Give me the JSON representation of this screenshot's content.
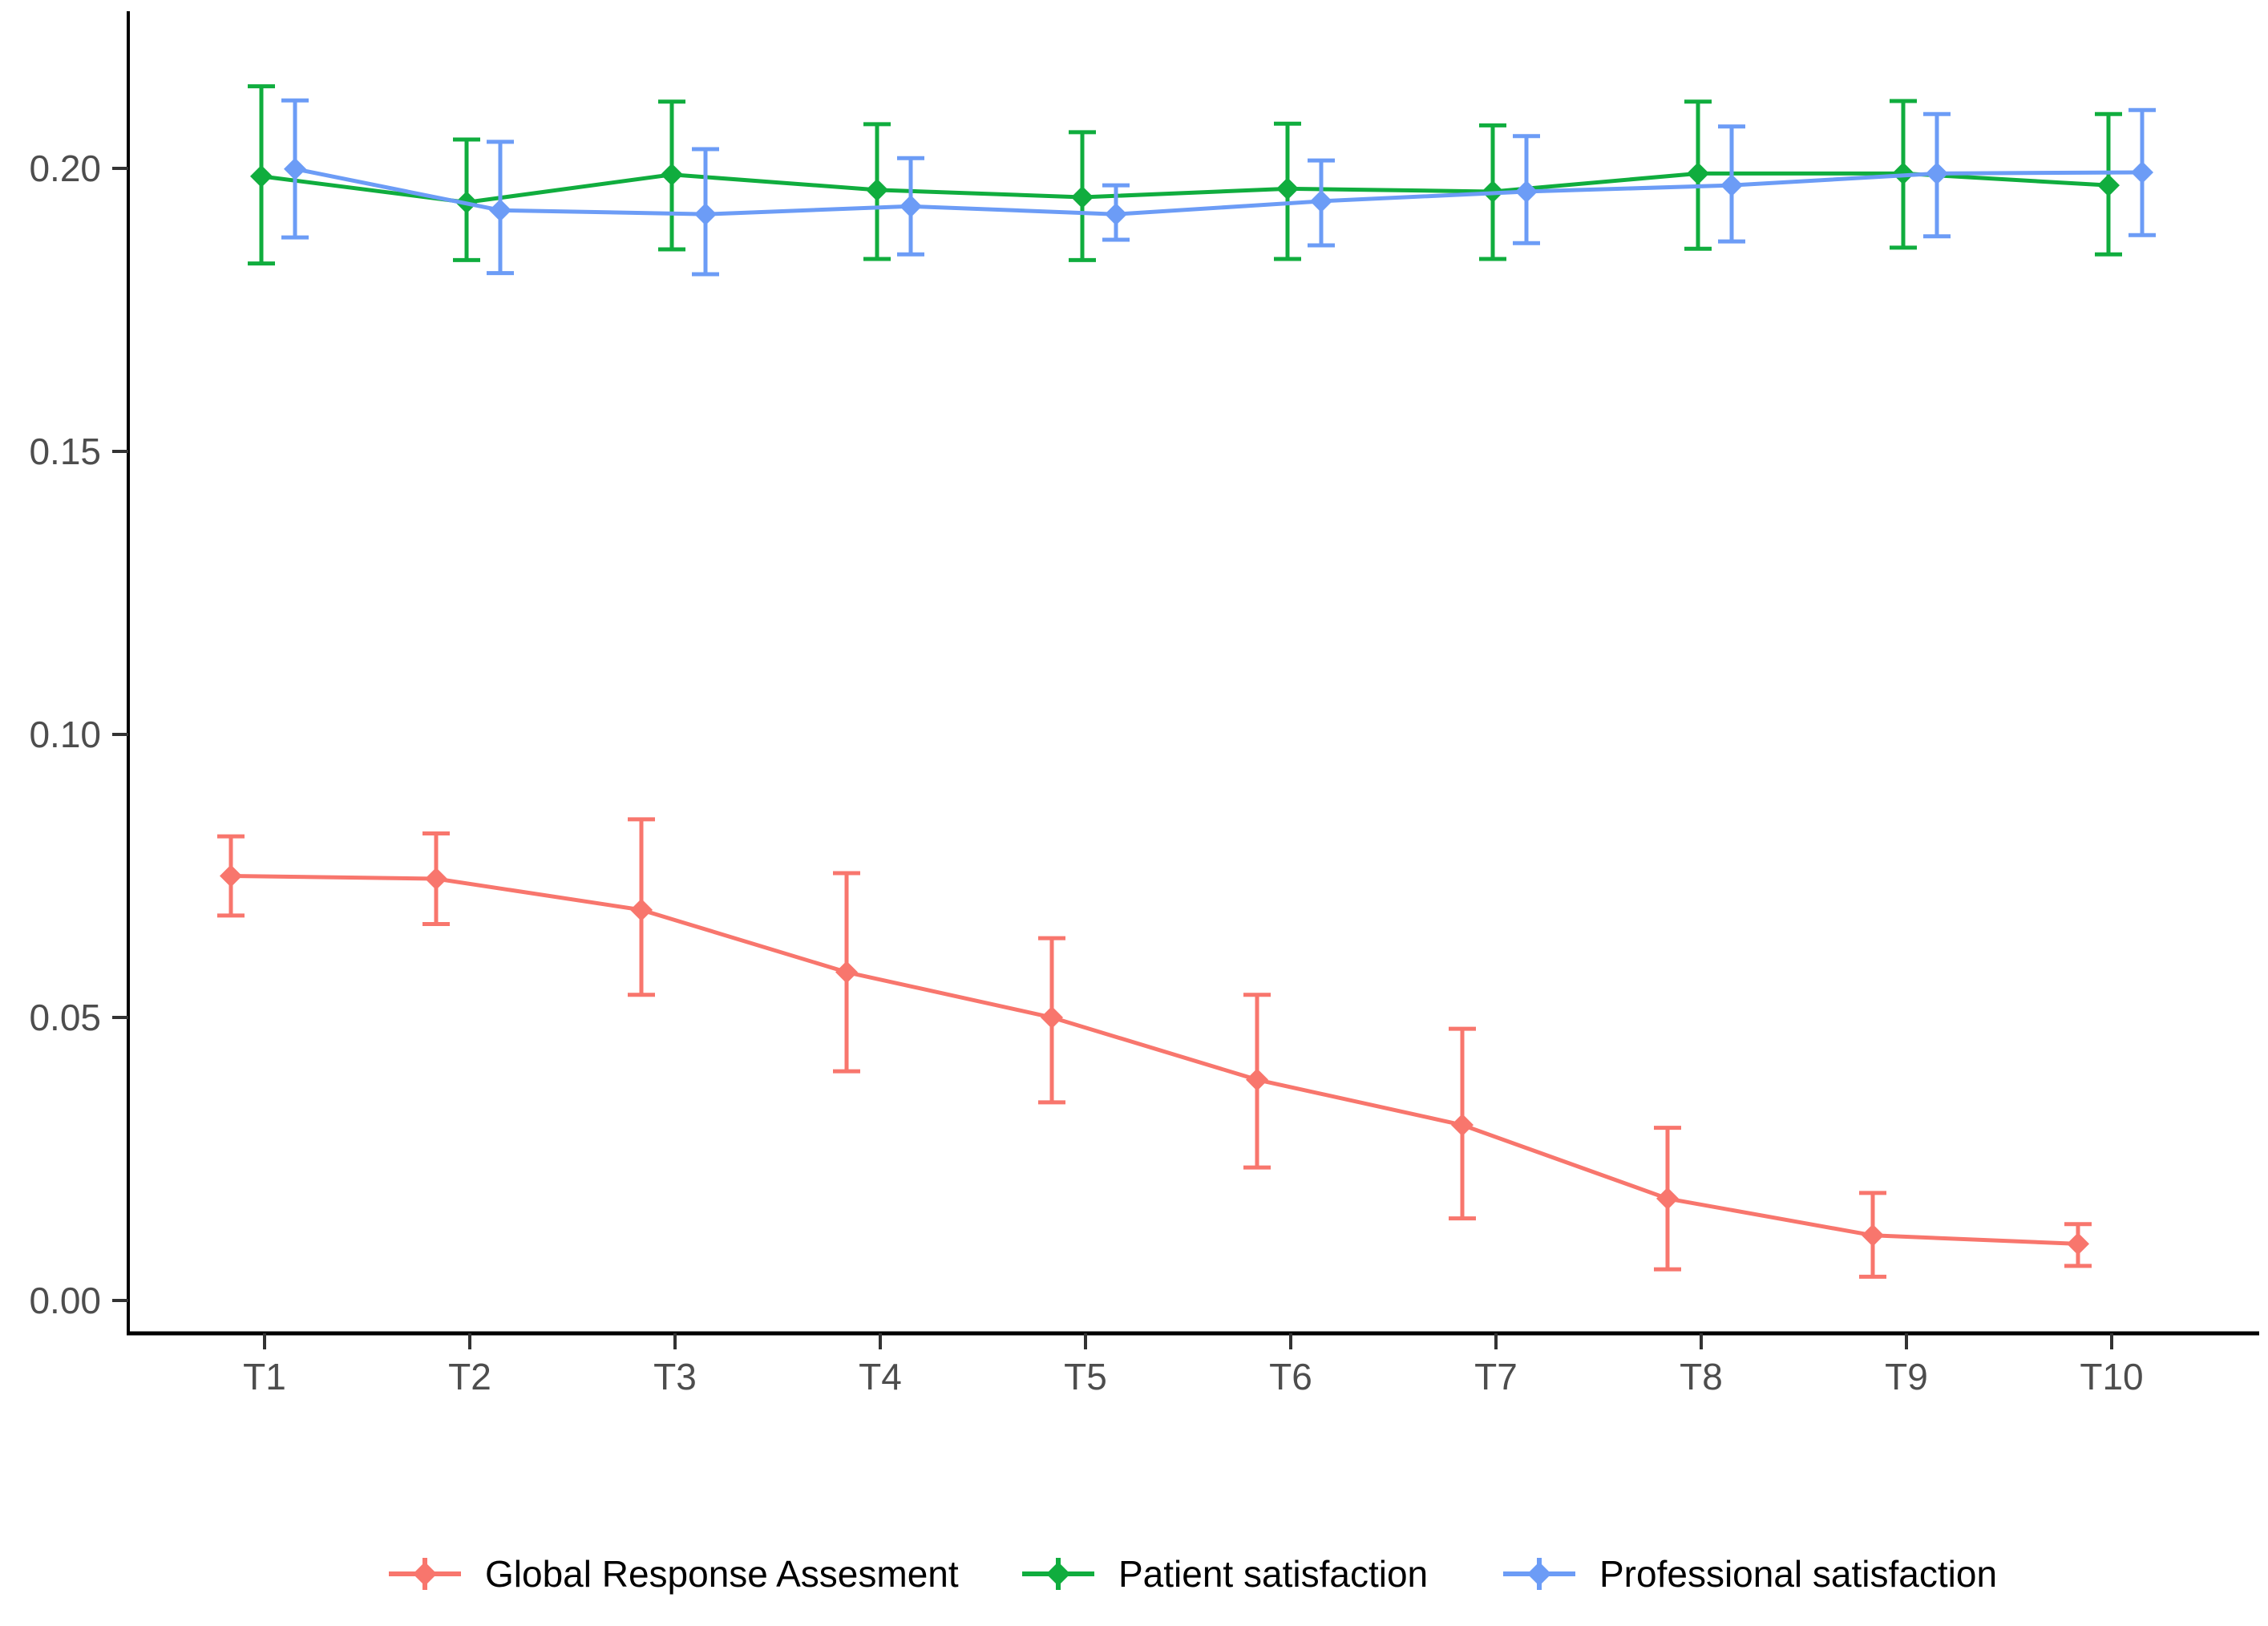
{
  "chart_data": {
    "type": "line",
    "title": "",
    "xlabel": "",
    "ylabel": "",
    "grid": false,
    "legend_position": "bottom",
    "categories": [
      "T1",
      "T2",
      "T3",
      "T4",
      "T5",
      "T6",
      "T7",
      "T8",
      "T9",
      "T10"
    ],
    "y_ticks": [
      "0.00",
      "0.05",
      "0.10",
      "0.15",
      "0.20"
    ],
    "y_tick_values": [
      0.0,
      0.05,
      0.1,
      0.15,
      0.2
    ],
    "ylim": [
      -0.006,
      0.228
    ],
    "series": [
      {
        "name": "Global Response Assesment",
        "color": "#F8766D",
        "marker": "diamond",
        "values": [
          0.075,
          0.0745,
          0.069,
          0.058,
          0.05,
          0.039,
          0.031,
          0.018,
          0.0115,
          0.01
        ],
        "err_low": [
          0.068,
          0.0665,
          0.054,
          0.0405,
          0.035,
          0.0235,
          0.0145,
          0.0055,
          0.0042,
          0.0061
        ],
        "err_high": [
          0.082,
          0.0825,
          0.085,
          0.0755,
          0.064,
          0.054,
          0.048,
          0.0305,
          0.019,
          0.0135
        ]
      },
      {
        "name": "Patient satisfaction",
        "color": "#10AD3E",
        "marker": "diamond",
        "values": [
          0.1986,
          0.194,
          0.1989,
          0.1962,
          0.1949,
          0.1964,
          0.1959,
          0.1991,
          0.1991,
          0.197
        ],
        "err_low": [
          0.1832,
          0.1838,
          0.1857,
          0.184,
          0.1838,
          0.184,
          0.184,
          0.1858,
          0.186,
          0.1848
        ],
        "err_high": [
          0.2145,
          0.2051,
          0.2118,
          0.2078,
          0.2064,
          0.2079,
          0.2076,
          0.2118,
          0.2119,
          0.2096
        ]
      },
      {
        "name": "Professional satisfaction",
        "color": "#6C9CF6",
        "marker": "diamond",
        "values": [
          0.1999,
          0.1926,
          0.1919,
          0.1933,
          0.1919,
          0.1942,
          0.1959,
          0.197,
          0.1991,
          0.1993
        ],
        "err_low": [
          0.1878,
          0.1815,
          0.1813,
          0.1848,
          0.1874,
          0.1864,
          0.1868,
          0.1871,
          0.188,
          0.1882
        ],
        "err_high": [
          0.212,
          0.2047,
          0.2034,
          0.2018,
          0.197,
          0.2014,
          0.2057,
          0.2074,
          0.2096,
          0.2103
        ]
      }
    ],
    "axis_text_color": "#4d4d4d",
    "axis_line_color": "#000000",
    "legend_text_color": "#000000"
  }
}
